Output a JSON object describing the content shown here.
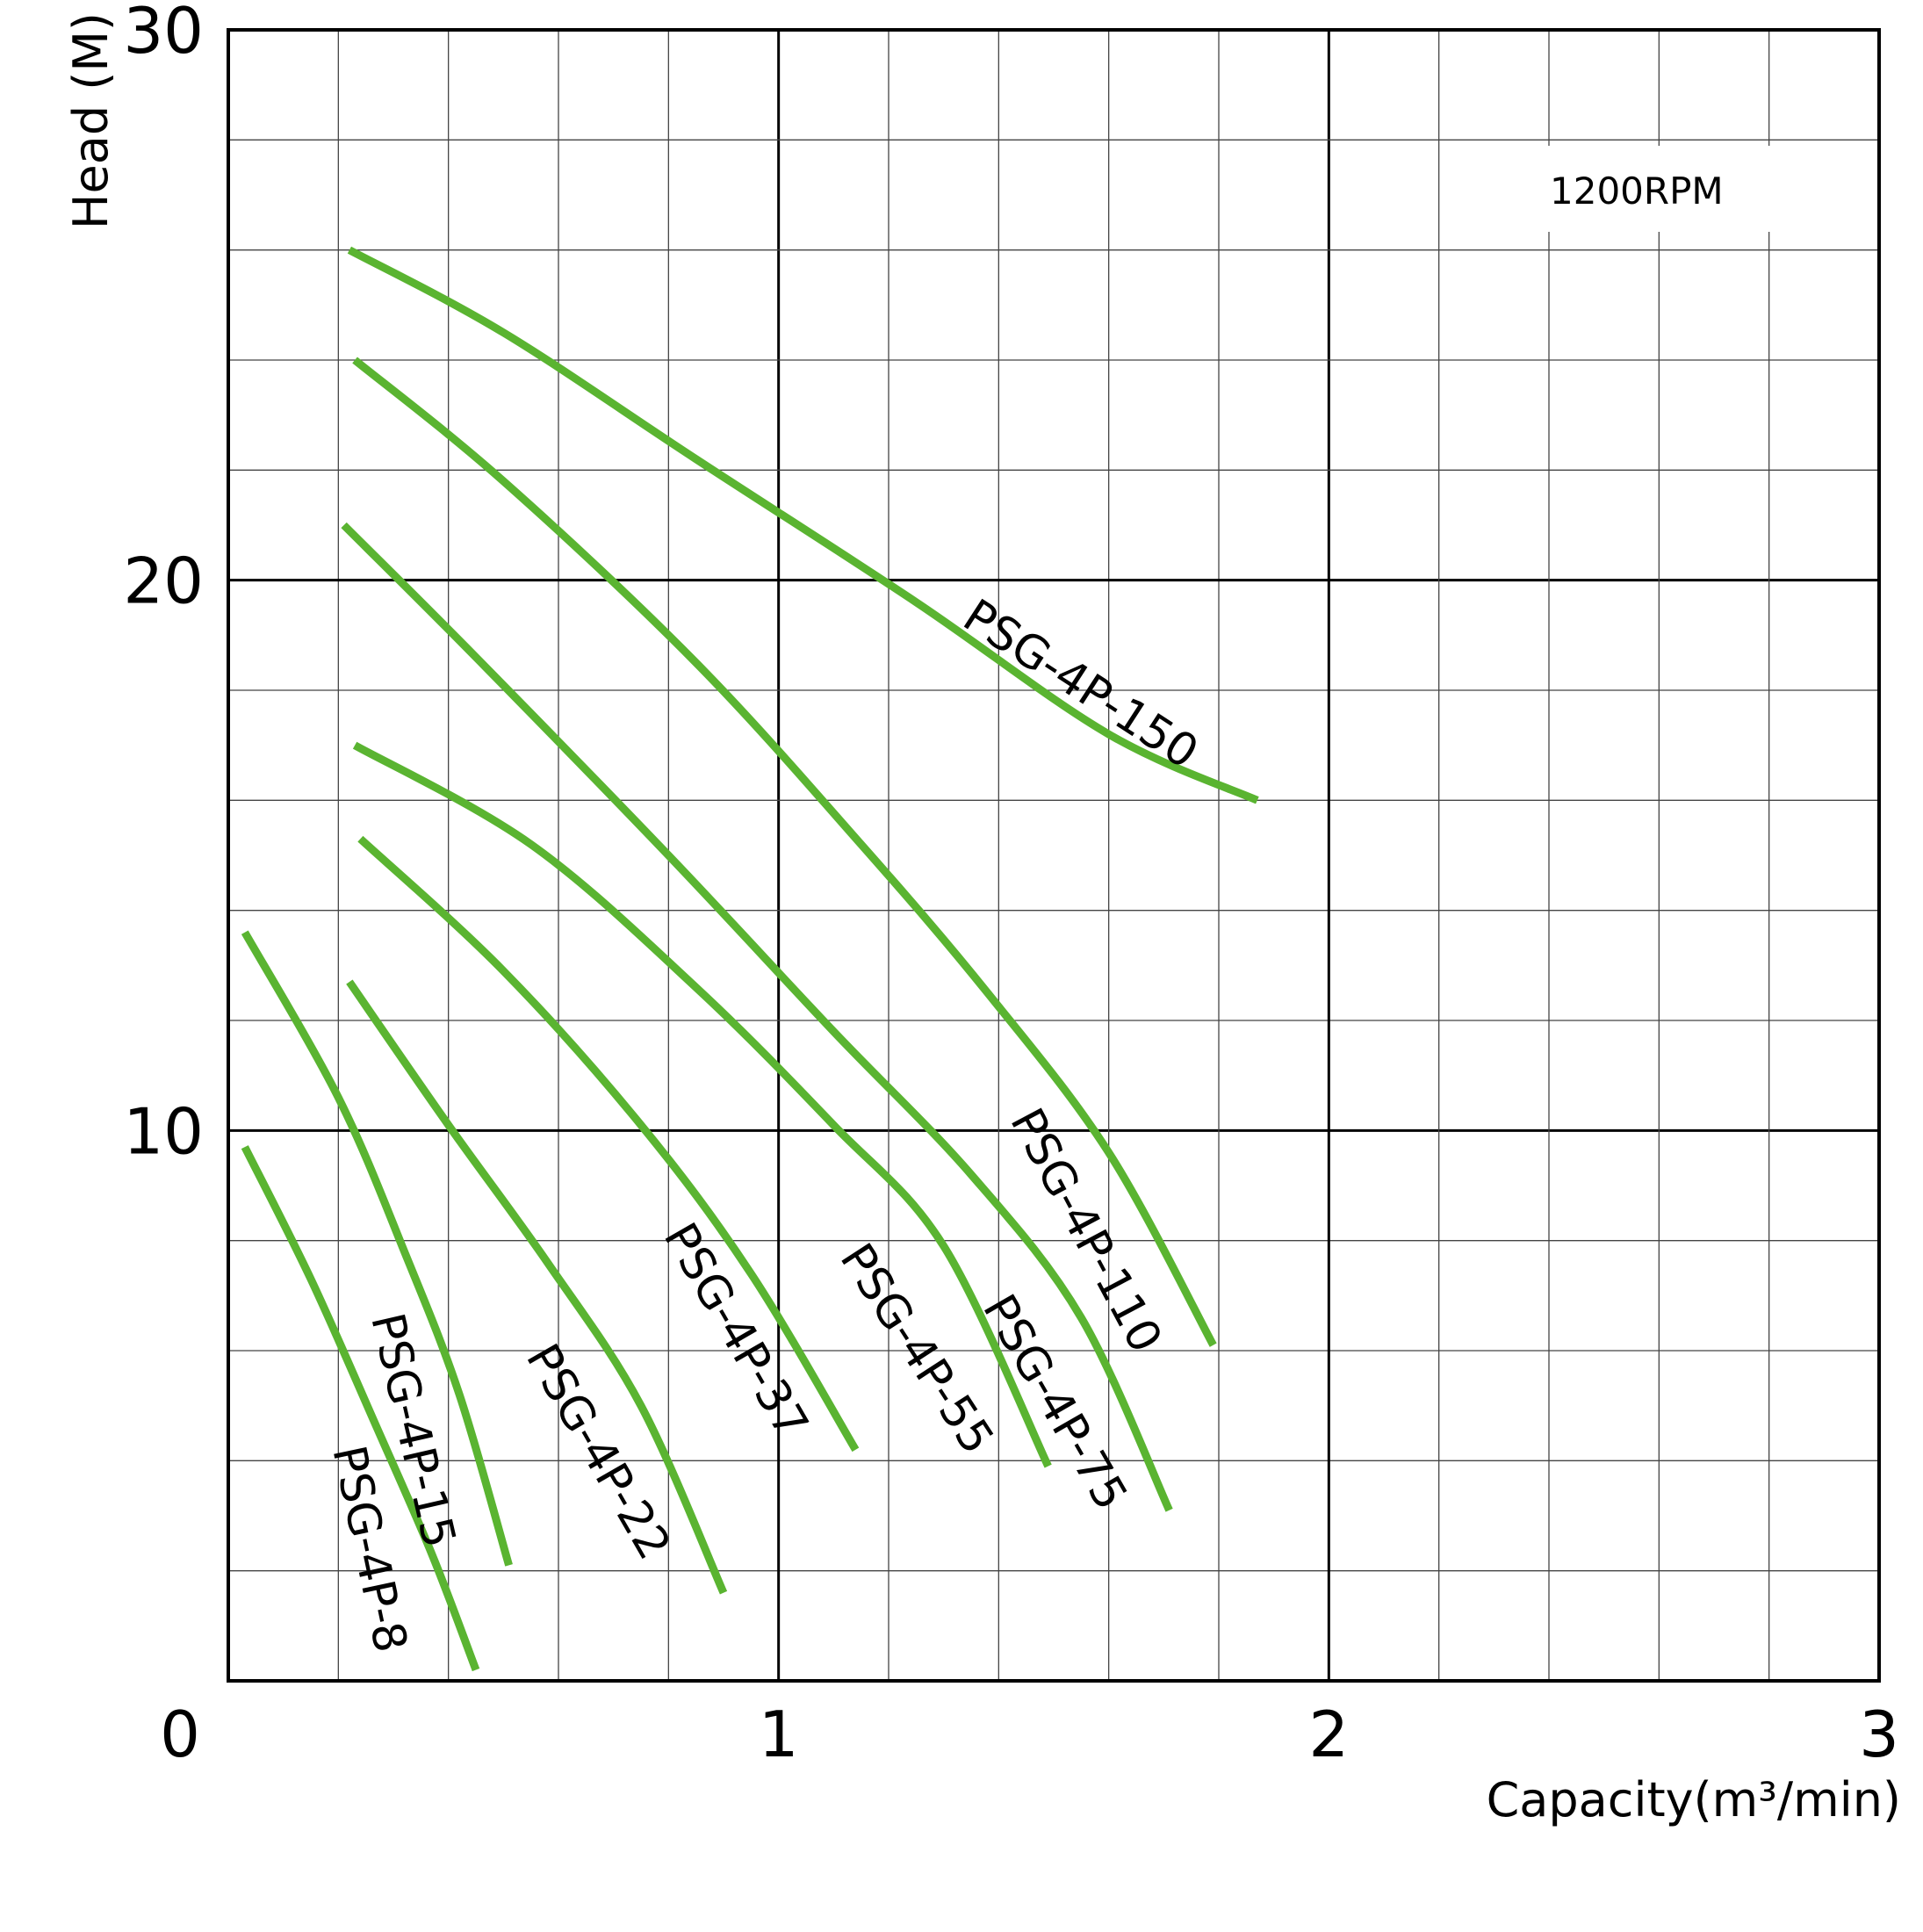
{
  "chart_data": {
    "type": "line",
    "title": "",
    "annotation": "1200RPM",
    "xlabel": "Capacity(m³/min)",
    "ylabel": "Head (M)",
    "xlim": [
      0,
      3
    ],
    "ylim": [
      0,
      30
    ],
    "x_ticks": [
      "0",
      "1",
      "2",
      "3"
    ],
    "y_ticks": [
      "10",
      "20",
      "30"
    ],
    "grid": true,
    "line_color": "#5ab431",
    "series": [
      {
        "name": "PSG-4P-150",
        "x": [
          0.22,
          0.5,
          0.85,
          1.25,
          1.6,
          1.87
        ],
        "y": [
          26.0,
          24.5,
          22.2,
          19.6,
          17.2,
          16.0
        ]
      },
      {
        "name": "PSG-4P-110",
        "x": [
          0.23,
          0.5,
          0.85,
          1.15,
          1.38,
          1.6,
          1.79
        ],
        "y": [
          24.0,
          21.8,
          18.5,
          15.2,
          12.5,
          9.6,
          6.1
        ]
      },
      {
        "name": "PSG-4P-75",
        "x": [
          0.21,
          0.45,
          0.8,
          1.1,
          1.35,
          1.55,
          1.71
        ],
        "y": [
          21.0,
          18.6,
          15.0,
          11.8,
          9.2,
          6.6,
          3.1
        ]
      },
      {
        "name": "PSG-4P-55",
        "x": [
          0.23,
          0.55,
          0.85,
          1.1,
          1.3,
          1.49
        ],
        "y": [
          17.0,
          15.2,
          12.6,
          10.1,
          7.9,
          3.9
        ]
      },
      {
        "name": "PSG-4P-37",
        "x": [
          0.24,
          0.5,
          0.75,
          0.95,
          1.14
        ],
        "y": [
          15.3,
          12.9,
          10.1,
          7.4,
          4.2
        ]
      },
      {
        "name": "PSG-4P-22",
        "x": [
          0.22,
          0.4,
          0.58,
          0.75,
          0.9
        ],
        "y": [
          12.7,
          10.1,
          7.6,
          5.0,
          1.6
        ]
      },
      {
        "name": "PSG-4P-15",
        "x": [
          0.03,
          0.2,
          0.32,
          0.42,
          0.51
        ],
        "y": [
          13.6,
          10.6,
          7.8,
          5.2,
          2.1
        ]
      },
      {
        "name": "PSG-4P-8",
        "x": [
          0.03,
          0.15,
          0.27,
          0.37,
          0.45
        ],
        "y": [
          9.7,
          7.3,
          4.6,
          2.3,
          0.2
        ]
      }
    ],
    "series_label_angles": [
      33,
      62,
      60,
      57,
      60,
      60,
      77,
      78
    ],
    "series_label_positions": [
      {
        "x": 1.33,
        "y": 19.2
      },
      {
        "x": 1.42,
        "y": 10.2
      },
      {
        "x": 1.37,
        "y": 6.8
      },
      {
        "x": 1.11,
        "y": 7.7
      },
      {
        "x": 0.79,
        "y": 8.1
      },
      {
        "x": 0.54,
        "y": 5.9
      },
      {
        "x": 0.26,
        "y": 6.6
      },
      {
        "x": 0.19,
        "y": 4.2
      }
    ]
  }
}
